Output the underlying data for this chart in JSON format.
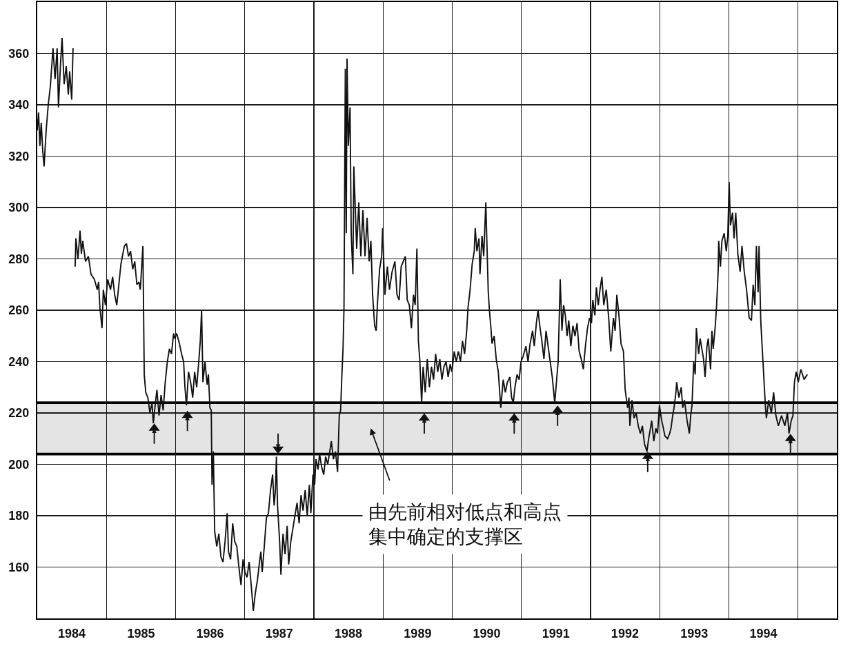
{
  "chart_data": {
    "type": "line",
    "x": [
      "1984-01-01",
      "1984-01-08",
      "1984-01-15",
      "1984-01-22",
      "1984-01-30",
      "1984-02-06",
      "1984-02-17",
      "1984-02-28",
      "1984-03-10",
      "1984-03-24",
      "1984-04-04",
      "1984-04-15",
      "1984-04-22",
      "1984-05-03",
      "1984-05-11",
      "1984-05-22",
      "1984-06-02",
      "1984-06-13",
      "1984-06-20",
      "1984-07-01",
      "1984-07-08",
      "1984-07-14",
      "1984-07-19",
      "1984-07-23",
      "1984-08-03",
      "1984-08-14",
      "1984-08-21",
      "1984-08-28",
      "1984-09-12",
      "1984-09-27",
      "1984-10-11",
      "1984-10-29",
      "1984-11-13",
      "1984-11-20",
      "1984-11-27",
      "1984-12-08",
      "1984-12-15",
      "1984-12-26",
      "1985-01-07",
      "1985-01-22",
      "1985-02-02",
      "1985-02-13",
      "1985-02-24",
      "1985-03-07",
      "1985-03-18",
      "1985-04-05",
      "1985-04-16",
      "1985-04-27",
      "1985-05-08",
      "1985-05-19",
      "1985-05-30",
      "1985-06-10",
      "1985-06-21",
      "1985-06-28",
      "1985-07-05",
      "1985-07-12",
      "1985-07-19",
      "1985-07-27",
      "1985-08-07",
      "1985-08-18",
      "1985-08-29",
      "1985-09-05",
      "1985-09-13",
      "1985-09-24",
      "1985-10-05",
      "1985-10-16",
      "1985-10-27",
      "1985-11-07",
      "1985-11-18",
      "1985-11-29",
      "1985-12-10",
      "1985-12-21",
      "1985-12-27",
      "1986-01-06",
      "1986-01-21",
      "1986-02-01",
      "1986-02-12",
      "1986-02-19",
      "1986-02-27",
      "1986-03-10",
      "1986-03-21",
      "1986-04-01",
      "1986-04-11",
      "1986-04-22",
      "1986-05-03",
      "1986-05-11",
      "1986-05-18",
      "1986-05-25",
      "1986-06-05",
      "1986-06-16",
      "1986-06-23",
      "1986-07-01",
      "1986-07-08",
      "1986-07-12",
      "1986-07-19",
      "1986-07-26",
      "1986-08-06",
      "1986-08-17",
      "1986-08-28",
      "1986-09-08",
      "1986-09-19",
      "1986-09-30",
      "1986-10-07",
      "1986-10-18",
      "1986-10-29",
      "1986-11-09",
      "1986-11-20",
      "1986-12-01",
      "1986-12-12",
      "1986-12-23",
      "1987-01-02",
      "1987-01-13",
      "1987-01-24",
      "1987-02-04",
      "1987-02-15",
      "1987-02-26",
      "1987-03-09",
      "1987-03-20",
      "1987-03-27",
      "1987-04-03",
      "1987-04-14",
      "1987-04-25",
      "1987-05-06",
      "1987-05-17",
      "1987-05-28",
      "1987-06-05",
      "1987-06-12",
      "1987-06-17",
      "1987-06-23",
      "1987-07-04",
      "1987-07-11",
      "1987-07-22",
      "1987-08-02",
      "1987-08-13",
      "1987-08-21",
      "1987-09-01",
      "1987-09-12",
      "1987-09-23",
      "1987-10-04",
      "1987-10-15",
      "1987-10-25",
      "1987-11-05",
      "1987-11-16",
      "1987-11-27",
      "1987-12-08",
      "1987-12-16",
      "1987-12-27",
      "1988-01-05",
      "1988-01-12",
      "1988-01-23",
      "1988-01-31",
      "1988-02-11",
      "1988-02-22",
      "1988-03-03",
      "1988-03-14",
      "1988-03-25",
      "1988-04-02",
      "1988-04-13",
      "1988-04-24",
      "1988-05-05",
      "1988-05-14",
      "1988-05-21",
      "1988-05-28",
      "1988-06-03",
      "1988-06-08",
      "1988-06-15",
      "1988-06-20",
      "1988-06-24",
      "1988-07-01",
      "1988-07-10",
      "1988-07-16",
      "1988-07-25",
      "1988-07-30",
      "1988-08-14",
      "1988-08-25",
      "1988-09-05",
      "1988-09-16",
      "1988-09-27",
      "1988-10-08",
      "1988-10-19",
      "1988-10-28",
      "1988-11-06",
      "1988-11-17",
      "1988-11-25",
      "1988-12-02",
      "1988-12-13",
      "1988-12-24",
      "1988-12-29",
      "1989-01-10",
      "1989-01-23",
      "1989-02-03",
      "1989-02-17",
      "1989-03-04",
      "1989-03-15",
      "1989-03-26",
      "1989-04-06",
      "1989-04-17",
      "1989-04-28",
      "1989-05-08",
      "1989-05-19",
      "1989-05-30",
      "1989-06-10",
      "1989-06-19",
      "1989-06-28",
      "1989-07-06",
      "1989-07-13",
      "1989-07-23",
      "1989-07-31",
      "1989-08-11",
      "1989-08-22",
      "1989-09-02",
      "1989-09-13",
      "1989-09-24",
      "1989-10-05",
      "1989-10-16",
      "1989-10-27",
      "1989-11-07",
      "1989-11-18",
      "1989-11-29",
      "1989-12-10",
      "1989-12-21",
      "1989-12-30",
      "1990-01-11",
      "1990-01-22",
      "1990-02-02",
      "1990-02-13",
      "1990-02-24",
      "1990-03-07",
      "1990-03-18",
      "1990-03-25",
      "1990-04-05",
      "1990-04-16",
      "1990-04-27",
      "1990-05-02",
      "1990-05-11",
      "1990-05-22",
      "1990-05-27",
      "1990-06-07",
      "1990-06-16",
      "1990-06-27",
      "1990-07-05",
      "1990-07-10",
      "1990-07-16",
      "1990-07-23",
      "1990-07-30",
      "1990-08-10",
      "1990-08-21",
      "1990-09-01",
      "1990-09-14",
      "1990-09-27",
      "1990-10-08",
      "1990-10-19",
      "1990-11-01",
      "1990-11-10",
      "1990-11-19",
      "1990-11-28",
      "1990-12-09",
      "1990-12-20",
      "1990-12-30",
      "1991-01-10",
      "1991-01-25",
      "1991-02-05",
      "1991-02-16",
      "1991-03-01",
      "1991-03-10",
      "1991-03-21",
      "1991-03-30",
      "1991-04-08",
      "1991-04-19",
      "1991-04-30",
      "1991-05-11",
      "1991-05-22",
      "1991-06-02",
      "1991-06-13",
      "1991-06-26",
      "1991-07-05",
      "1991-07-14",
      "1991-07-25",
      "1991-08-03",
      "1991-08-12",
      "1991-08-21",
      "1991-08-30",
      "1991-09-08",
      "1991-09-19",
      "1991-09-30",
      "1991-10-11",
      "1991-10-22",
      "1991-11-02",
      "1991-11-13",
      "1991-11-24",
      "1991-12-05",
      "1991-12-16",
      "1991-12-27",
      "1992-01-06",
      "1992-01-13",
      "1992-01-24",
      "1992-02-01",
      "1992-02-11",
      "1992-02-20",
      "1992-03-01",
      "1992-03-11",
      "1992-03-24",
      "1992-04-06",
      "1992-04-17",
      "1992-05-01",
      "1992-05-10",
      "1992-05-19",
      "1992-05-30",
      "1992-06-10",
      "1992-06-23",
      "1992-07-02",
      "1992-07-15",
      "1992-07-22",
      "1992-07-27",
      "1992-08-07",
      "1992-08-18",
      "1992-08-29",
      "1992-09-09",
      "1992-09-20",
      "1992-10-01",
      "1992-10-12",
      "1992-10-25",
      "1992-11-03",
      "1992-11-10",
      "1992-11-19",
      "1992-11-30",
      "1992-12-11",
      "1992-12-20",
      "1992-12-30",
      "1993-01-11",
      "1993-01-20",
      "1993-01-28",
      "1993-02-11",
      "1993-02-22",
      "1993-03-01",
      "1993-03-10",
      "1993-03-17",
      "1993-03-27",
      "1993-03-31",
      "1993-04-12",
      "1993-04-24",
      "1993-05-02",
      "1993-05-11",
      "1993-05-25",
      "1993-06-06",
      "1993-06-13",
      "1993-06-20",
      "1993-06-29",
      "1993-07-07",
      "1993-07-13",
      "1993-07-25",
      "1993-08-02",
      "1993-08-11",
      "1993-08-20",
      "1993-08-28",
      "1993-09-07",
      "1993-09-14",
      "1993-09-26",
      "1993-10-03",
      "1993-10-10",
      "1993-10-21",
      "1993-10-28",
      "1993-11-05",
      "1993-11-08",
      "1993-11-17",
      "1993-11-25",
      "1993-12-07",
      "1993-12-18",
      "1993-12-26",
      "1994-01-02",
      "1994-01-09",
      "1994-01-20",
      "1994-01-28",
      "1994-02-06",
      "1994-02-17",
      "1994-03-01",
      "1994-03-11",
      "1994-03-23",
      "1994-04-04",
      "1994-04-18",
      "1994-04-30",
      "1994-05-09",
      "1994-05-18",
      "1994-05-26",
      "1994-06-04",
      "1994-06-09",
      "1994-06-18",
      "1994-06-26",
      "1994-07-05",
      "1994-07-13",
      "1994-07-18",
      "1994-07-30",
      "1994-08-13",
      "1994-08-25",
      "1994-09-06",
      "1994-09-19",
      "1994-10-06",
      "1994-10-23",
      "1994-11-06",
      "1994-11-14",
      "1994-11-26",
      "1994-12-05",
      "1994-12-13",
      "1994-12-22",
      "1995-01-02",
      "1995-01-16",
      "1995-02-02",
      "1995-02-19"
    ],
    "series": [
      {
        "color": "#111111",
        "values": [
          330,
          337,
          324,
          333,
          322,
          316,
          330,
          340,
          347,
          362,
          350,
          362,
          339,
          356,
          366,
          348,
          355,
          344,
          353,
          342,
          362,
          null,
          277,
          288,
          280,
          291,
          282,
          287,
          279,
          281,
          274,
          272,
          268,
          271,
          261,
          253,
          268,
          262,
          272,
          268,
          273,
          266,
          262,
          270,
          278,
          285,
          286,
          281,
          283,
          276,
          279,
          270,
          271,
          268,
          276,
          285,
          235,
          228,
          226,
          220,
          224,
          216,
          222,
          229,
          219,
          227,
          221,
          232,
          240,
          245,
          243,
          251,
          249,
          251,
          247,
          243,
          240,
          230,
          223,
          236,
          232,
          226,
          236,
          230,
          240,
          248,
          260,
          232,
          240,
          231,
          235,
          222,
          221,
          192,
          205,
          174,
          168,
          173,
          164,
          162,
          170,
          181,
          166,
          163,
          177,
          170,
          168,
          160,
          153,
          163,
          158,
          156,
          162,
          153,
          143,
          150,
          155,
          162,
          166,
          158,
          168,
          179,
          181,
          190,
          196,
          184,
          190,
          203,
          184,
          170,
          157,
          173,
          165,
          176,
          161,
          170,
          175,
          180,
          185,
          177,
          188,
          182,
          190,
          180,
          192,
          181,
          196,
          192,
          202,
          198,
          204,
          199,
          196,
          203,
          200,
          205,
          209,
          202,
          205,
          197,
          219,
          221,
          235,
          245,
          261,
          354,
          290,
          358,
          324,
          339,
          290,
          274,
          316,
          284,
          302,
          281,
          299,
          281,
          296,
          279,
          287,
          266,
          254,
          252,
          263,
          276,
          281,
          292,
          266,
          277,
          268,
          275,
          279,
          266,
          264,
          277,
          279,
          281,
          264,
          262,
          253,
          266,
          262,
          284,
          248,
          241,
          224,
          238,
          228,
          241,
          230,
          238,
          233,
          243,
          236,
          241,
          233,
          238,
          240,
          234,
          239,
          236,
          244,
          240,
          244,
          240,
          248,
          243,
          252,
          261,
          268,
          278,
          283,
          292,
          283,
          288,
          274,
          289,
          281,
          302,
          280,
          267,
          260,
          254,
          247,
          250,
          241,
          236,
          222,
          233,
          228,
          232,
          234,
          226,
          224,
          230,
          235,
          233,
          240,
          242,
          246,
          240,
          247,
          252,
          246,
          255,
          260,
          254,
          248,
          241,
          252,
          246,
          240,
          234,
          224,
          232,
          240,
          272,
          252,
          262,
          258,
          250,
          256,
          246,
          254,
          250,
          255,
          244,
          241,
          237,
          246,
          253,
          257,
          255,
          264,
          258,
          269,
          262,
          268,
          273,
          262,
          268,
          257,
          244,
          257,
          252,
          266,
          258,
          247,
          244,
          229,
          222,
          226,
          215,
          225,
          218,
          220,
          215,
          212,
          215,
          208,
          205,
          210,
          213,
          217,
          209,
          214,
          212,
          223,
          217,
          214,
          211,
          210,
          212,
          214,
          219,
          222,
          228,
          232,
          226,
          230,
          222,
          225,
          217,
          212,
          219,
          223,
          240,
          235,
          253,
          243,
          249,
          245,
          241,
          234,
          246,
          249,
          237,
          252,
          245,
          254,
          262,
          275,
          287,
          277,
          287,
          290,
          283,
          289,
          310,
          293,
          298,
          288,
          298,
          282,
          275,
          285,
          275,
          268,
          257,
          256,
          270,
          262,
          285,
          267,
          285,
          256,
          245,
          233,
          222,
          218,
          225,
          220,
          228,
          219,
          215,
          219,
          215,
          220,
          212,
          217,
          219,
          232,
          236,
          232,
          237,
          233,
          235
        ]
      },
      {
        "type": "scatter",
        "marker": "triangle",
        "color": "#111111",
        "x": [
          "1985-09-10",
          "1986-03-04",
          "1987-06-26",
          "1989-08-06",
          "1990-11-24",
          "1991-07-11",
          "1992-10-29",
          "1994-11-22"
        ],
        "values": [
          214,
          219,
          206,
          218,
          218,
          221,
          203,
          210
        ]
      }
    ],
    "xlim": [
      "1984-01-01",
      "1995-07-25"
    ],
    "xticks": [
      {
        "value": "1984-07-01",
        "label": "1984"
      },
      {
        "value": "1985-01-01",
        "label": null
      },
      {
        "value": "1985-07-02",
        "label": "1985"
      },
      {
        "value": "1986-01-01",
        "label": null
      },
      {
        "value": "1986-07-02",
        "label": "1986"
      },
      {
        "value": "1987-01-01",
        "label": null
      },
      {
        "value": "1987-07-02",
        "label": "1987"
      },
      {
        "value": "1988-01-01",
        "label": null
      },
      {
        "value": "1988-07-01",
        "label": "1988"
      },
      {
        "value": "1989-01-01",
        "label": null
      },
      {
        "value": "1989-07-02",
        "label": "1989"
      },
      {
        "value": "1990-01-01",
        "label": null
      },
      {
        "value": "1990-07-02",
        "label": "1990"
      },
      {
        "value": "1991-01-01",
        "label": null
      },
      {
        "value": "1991-07-02",
        "label": "1991"
      },
      {
        "value": "1992-01-01",
        "label": null
      },
      {
        "value": "1992-07-01",
        "label": "1992"
      },
      {
        "value": "1993-01-01",
        "label": null
      },
      {
        "value": "1993-07-02",
        "label": "1993"
      },
      {
        "value": "1994-01-01",
        "label": null
      },
      {
        "value": "1994-07-02",
        "label": "1994"
      },
      {
        "value": "1995-01-01",
        "label": null
      }
    ],
    "ylim": [
      140,
      380
    ],
    "yticks": [
      160,
      180,
      200,
      220,
      240,
      260,
      280,
      300,
      320,
      340,
      360
    ],
    "grid": true,
    "bands": [
      {
        "axis": "y",
        "from": 204,
        "to": 224,
        "color": "#e4e4e4",
        "label": "由先前相对低点和高点集中确定的支撑区"
      }
    ],
    "ref_lines": [
      {
        "axis": "y",
        "value": 224,
        "color": "#000000"
      },
      {
        "axis": "y",
        "value": 204,
        "color": "#000000"
      }
    ]
  }
}
